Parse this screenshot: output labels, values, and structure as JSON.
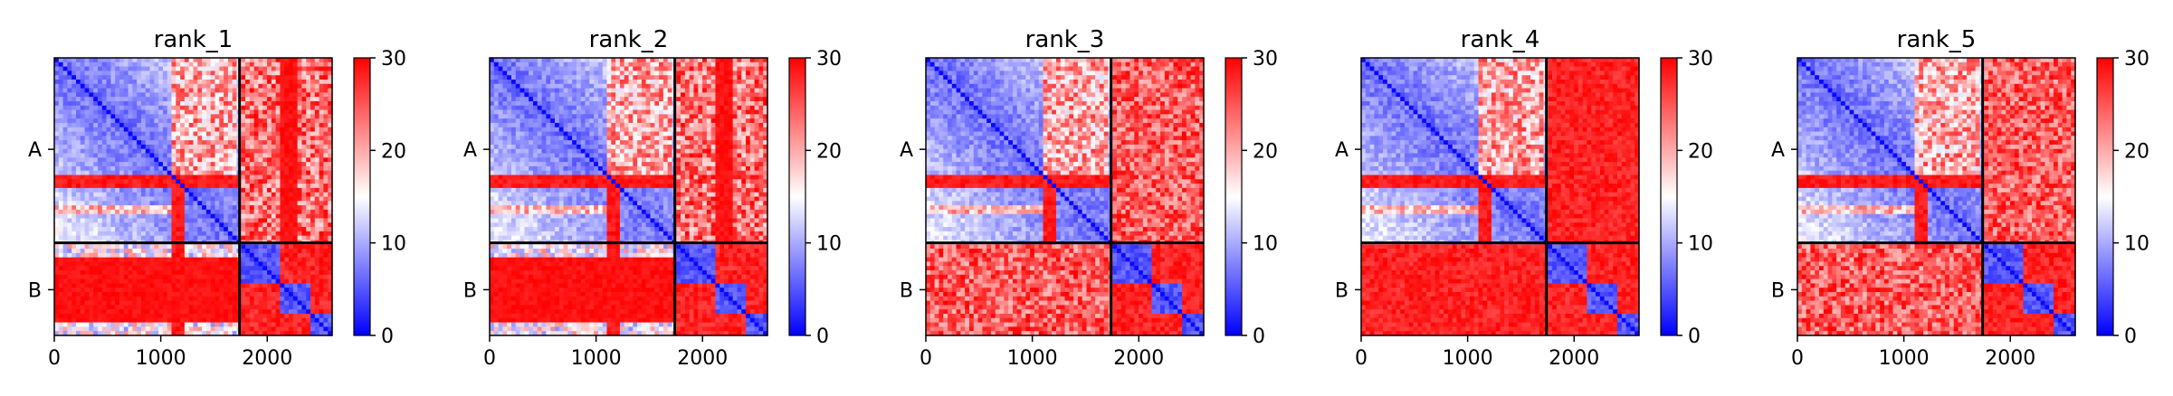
{
  "chart_data": [
    {
      "type": "heatmap",
      "title": "rank_1",
      "x_ticks": [
        0,
        1000,
        2000
      ],
      "y_tick_labels": [
        "A",
        "B"
      ],
      "y_tick_positions": [
        860,
        2180
      ],
      "chain_boundary": 1740,
      "n_residues": 2610,
      "colorbar": {
        "min": 0,
        "max": 30,
        "ticks": [
          0,
          10,
          20,
          30
        ],
        "colormap": "bwr"
      },
      "pattern": {
        "B_vs_A_offdiag": "banded",
        "A_vs_B_offdiag": "stripes"
      }
    },
    {
      "type": "heatmap",
      "title": "rank_2",
      "x_ticks": [
        0,
        1000,
        2000
      ],
      "y_tick_labels": [
        "A",
        "B"
      ],
      "y_tick_positions": [
        860,
        2180
      ],
      "chain_boundary": 1740,
      "n_residues": 2610,
      "colorbar": {
        "min": 0,
        "max": 30,
        "ticks": [
          0,
          10,
          20,
          30
        ],
        "colormap": "bwr"
      },
      "pattern": {
        "B_vs_A_offdiag": "banded",
        "A_vs_B_offdiag": "stripes"
      }
    },
    {
      "type": "heatmap",
      "title": "rank_3",
      "x_ticks": [
        0,
        1000,
        2000
      ],
      "y_tick_labels": [
        "A",
        "B"
      ],
      "y_tick_positions": [
        860,
        2180
      ],
      "chain_boundary": 1740,
      "n_residues": 2610,
      "colorbar": {
        "min": 0,
        "max": 30,
        "ticks": [
          0,
          10,
          20,
          30
        ],
        "colormap": "bwr"
      },
      "pattern": {
        "B_vs_A_offdiag": "mostly-red",
        "A_vs_B_offdiag": "mostly-red"
      }
    },
    {
      "type": "heatmap",
      "title": "rank_4",
      "x_ticks": [
        0,
        1000,
        2000
      ],
      "y_tick_labels": [
        "A",
        "B"
      ],
      "y_tick_positions": [
        860,
        2180
      ],
      "chain_boundary": 1740,
      "n_residues": 2610,
      "colorbar": {
        "min": 0,
        "max": 30,
        "ticks": [
          0,
          10,
          20,
          30
        ],
        "colormap": "bwr"
      },
      "pattern": {
        "B_vs_A_offdiag": "all-red",
        "A_vs_B_offdiag": "all-red"
      }
    },
    {
      "type": "heatmap",
      "title": "rank_5",
      "x_ticks": [
        0,
        1000,
        2000
      ],
      "y_tick_labels": [
        "A",
        "B"
      ],
      "y_tick_positions": [
        860,
        2180
      ],
      "chain_boundary": 1740,
      "n_residues": 2610,
      "colorbar": {
        "min": 0,
        "max": 30,
        "ticks": [
          0,
          10,
          20,
          30
        ],
        "colormap": "bwr"
      },
      "pattern": {
        "B_vs_A_offdiag": "mostly-red",
        "A_vs_B_offdiag": "mostly-red"
      }
    }
  ],
  "colors": {
    "low": "#0000ff",
    "mid": "#ffffff",
    "high": "#ff0000",
    "boundary": "#000000"
  }
}
